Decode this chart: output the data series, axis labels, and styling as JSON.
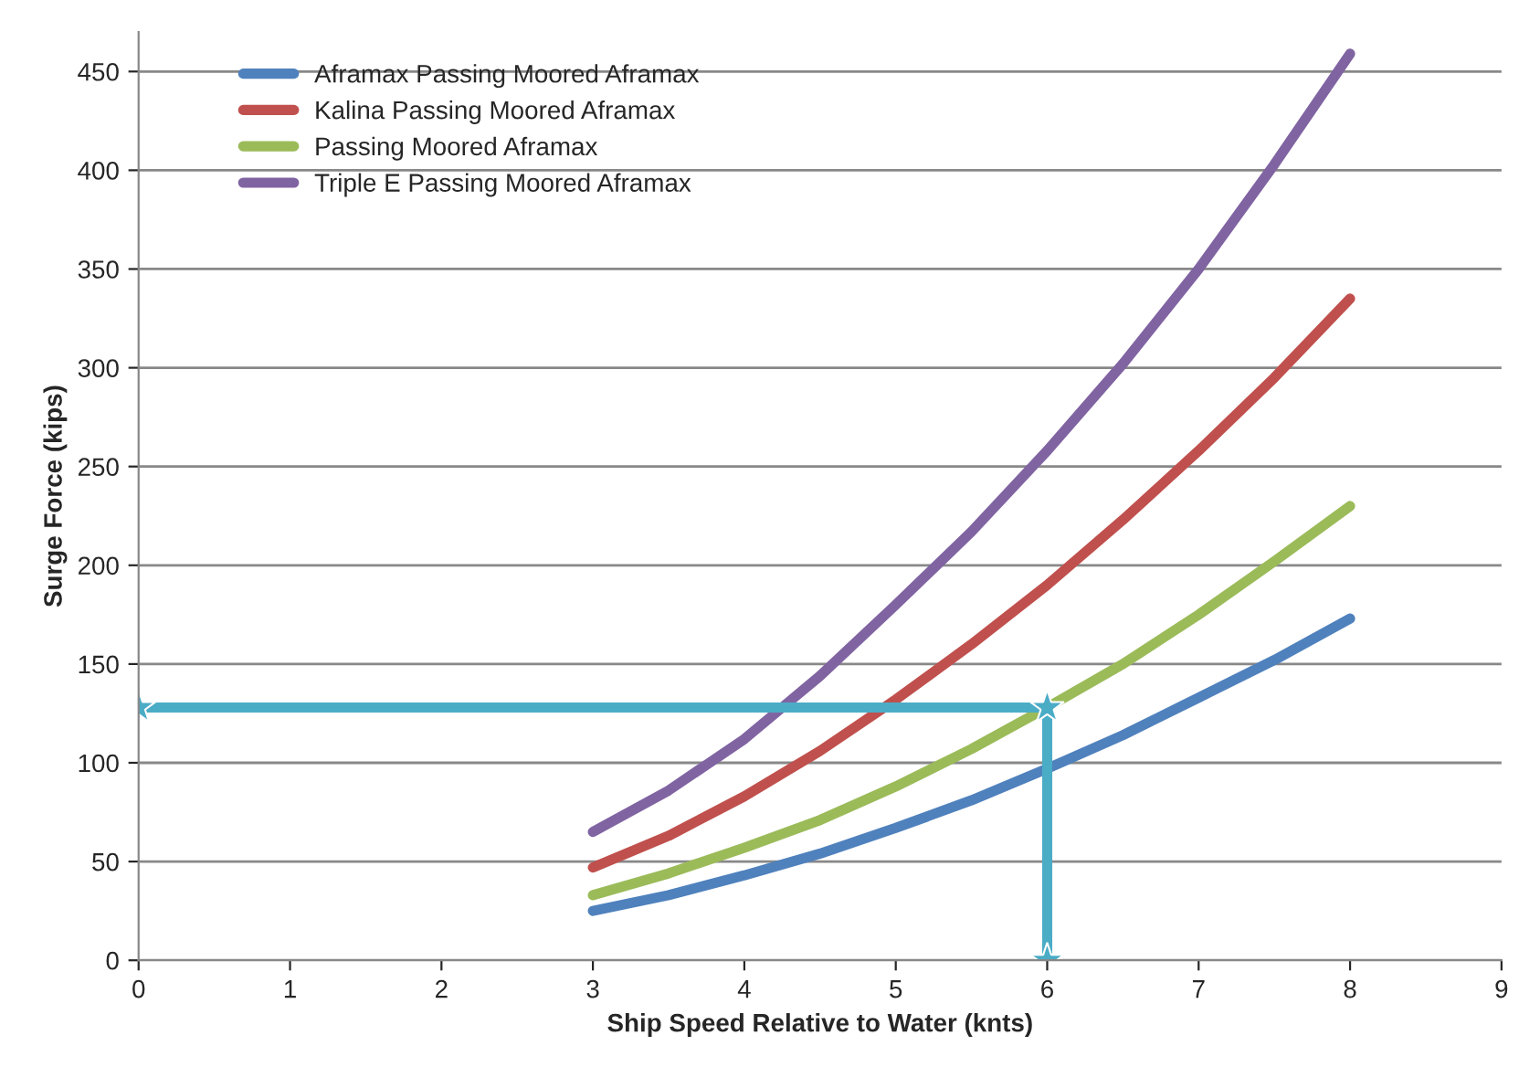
{
  "chart_data": {
    "type": "line",
    "xlabel": "Ship Speed Relative to Water (knts)",
    "ylabel": "Surge Force (kips)",
    "xlim": [
      0,
      9
    ],
    "xticks": [
      0,
      1,
      2,
      3,
      4,
      5,
      6,
      7,
      8,
      9
    ],
    "ylim": [
      0,
      470
    ],
    "yticks": [
      0,
      50,
      100,
      150,
      200,
      250,
      300,
      350,
      400,
      450
    ],
    "grid": "y",
    "legend": "top left",
    "marker": "none",
    "line_style": "solid",
    "series": [
      {
        "name": "Aframax Passing Moored Aframax",
        "color": "#4f81bd",
        "x": [
          3,
          3.5,
          4,
          4.5,
          5,
          5.5,
          6,
          6.5,
          7,
          7.5,
          8
        ],
        "values": [
          25,
          33,
          43,
          54,
          67,
          81,
          97,
          114,
          133,
          152,
          173
        ]
      },
      {
        "name": "Kalina Passing Moored Aframax",
        "color": "#c0504d",
        "x": [
          3,
          3.5,
          4,
          4.5,
          5,
          5.5,
          6,
          6.5,
          7,
          7.5,
          8
        ],
        "values": [
          47,
          63,
          83,
          106,
          132,
          160,
          190,
          223,
          258,
          295,
          335
        ]
      },
      {
        "name": "Passing Moored Aframax",
        "color": "#9bbb59",
        "x": [
          3,
          3.5,
          4,
          4.5,
          5,
          5.5,
          6,
          6.5,
          7,
          7.5,
          8
        ],
        "values": [
          33,
          44,
          57,
          71,
          88,
          107,
          128,
          150,
          175,
          202,
          230
        ]
      },
      {
        "name": "Triple E Passing Moored Aframax",
        "color": "#8064a2",
        "x": [
          3,
          3.5,
          4,
          4.5,
          5,
          5.5,
          6,
          6.5,
          7,
          7.5,
          8
        ],
        "values": [
          65,
          86,
          112,
          144,
          180,
          217,
          258,
          302,
          350,
          403,
          459
        ]
      },
      {
        "color": "#4bacc6",
        "x": [
          0,
          6,
          6
        ],
        "values": [
          128,
          128,
          0
        ],
        "marker": "star"
      }
    ]
  }
}
